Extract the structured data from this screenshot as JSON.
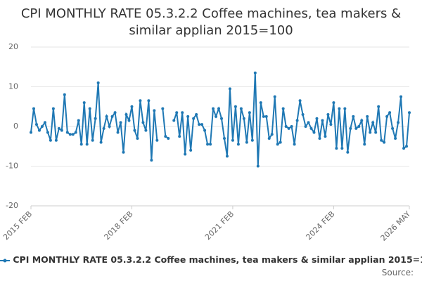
{
  "chart_data": {
    "type": "line",
    "title": "CPI MONTHLY RATE 05.3.2.2 Coffee machines, tea makers & similar applian 2015=100",
    "source": "Source:",
    "x": [
      "2015 FEB",
      "2015 MAR",
      "2015 APR",
      "2015 MAY",
      "2015 JUN",
      "2015 JUL",
      "2015 AUG",
      "2015 SEP",
      "2015 OCT",
      "2015 NOV",
      "2015 DEC",
      "2016 JAN",
      "2016 FEB",
      "2016 MAR",
      "2016 APR",
      "2016 MAY",
      "2016 JUN",
      "2016 JUL",
      "2016 AUG",
      "2016 SEP",
      "2016 OCT",
      "2016 NOV",
      "2016 DEC",
      "2017 JAN",
      "2017 FEB",
      "2017 MAR",
      "2017 APR",
      "2017 MAY",
      "2017 JUN",
      "2017 JUL",
      "2017 AUG",
      "2017 SEP",
      "2017 OCT",
      "2017 NOV",
      "2017 DEC",
      "2018 JAN",
      "2018 FEB",
      "2018 MAR",
      "2018 APR",
      "2018 MAY",
      "2018 JUN",
      "2018 JUL",
      "2018 AUG",
      "2018 SEP",
      "2018 OCT",
      "2018 NOV",
      "2018 DEC",
      "2019 JAN",
      "2019 FEB",
      "2019 MAR",
      "2019 APR",
      "2019 MAY",
      "2019 JUN",
      "2019 JUL",
      "2019 AUG",
      "2019 SEP",
      "2019 OCT",
      "2019 NOV",
      "2019 DEC",
      "2020 JAN",
      "2020 FEB",
      "2020 MAR",
      "2020 APR",
      "2020 MAY",
      "2020 JUN",
      "2020 JUL",
      "2020 AUG",
      "2020 SEP",
      "2020 OCT",
      "2020 NOV",
      "2020 DEC",
      "2021 JAN",
      "2021 FEB",
      "2021 MAR",
      "2021 APR",
      "2021 MAY",
      "2021 JUN",
      "2021 JUL",
      "2021 AUG",
      "2021 SEP",
      "2021 OCT",
      "2021 NOV",
      "2021 DEC",
      "2022 JAN",
      "2022 FEB",
      "2022 MAR",
      "2022 APR",
      "2022 MAY",
      "2022 JUN",
      "2022 JUL",
      "2022 AUG",
      "2022 SEP",
      "2022 OCT",
      "2022 NOV",
      "2022 DEC",
      "2023 JAN",
      "2023 FEB",
      "2023 MAR",
      "2023 APR",
      "2023 MAY",
      "2023 JUN",
      "2023 JUL",
      "2023 AUG",
      "2023 SEP",
      "2023 OCT",
      "2023 NOV",
      "2023 DEC",
      "2024 JAN",
      "2024 FEB",
      "2024 MAR",
      "2024 APR",
      "2024 MAY",
      "2024 JUN",
      "2024 JUL",
      "2024 AUG",
      "2024 SEP",
      "2024 OCT",
      "2024 NOV",
      "2024 DEC",
      "2025 JAN",
      "2025 FEB",
      "2025 MAR",
      "2025 APR",
      "2025 MAY",
      "2025 JUN",
      "2025 JUL",
      "2025 AUG",
      "2025 SEP",
      "2025 OCT",
      "2025 NOV",
      "2025 DEC",
      "2026 JAN",
      "2026 FEB",
      "2026 MAR",
      "2026 APR",
      "2026 MAY"
    ],
    "series": [
      {
        "name": "CPI MONTHLY RATE 05.3.2.2 Coffee machines, tea makers & similar applian 2015=100",
        "color": "#1f78b4",
        "values": [
          -1.5,
          4.5,
          0.5,
          -1,
          0,
          1,
          -1.5,
          -3.5,
          4.5,
          -3.5,
          -0.5,
          -1,
          8,
          -1.5,
          -2,
          -2,
          -1.5,
          1.5,
          -4.5,
          6,
          -4.5,
          4.5,
          -3.5,
          2,
          11,
          -4,
          -0.5,
          2.5,
          0,
          2.5,
          3.5,
          -1.5,
          1,
          -6.5,
          3,
          1.5,
          5,
          -1,
          -3,
          6.5,
          1,
          -1,
          6.5,
          -8.5,
          4,
          -3.5,
          null,
          4.5,
          -2.5,
          -3,
          null,
          1.5,
          3.5,
          -2.5,
          3.5,
          -7,
          2.5,
          -6,
          2,
          3,
          0.5,
          0.5,
          -1,
          -4.5,
          -4.5,
          4.5,
          2.5,
          4.5,
          2,
          -3,
          -7.5,
          9.5,
          -3.5,
          5,
          -4.5,
          4.5,
          2,
          -4,
          3.5,
          -3.5,
          13.5,
          -10,
          6,
          2.5,
          2.5,
          -3,
          -2,
          7.5,
          -4.5,
          -4,
          4.5,
          0,
          -0.5,
          0,
          -4.5,
          1.5,
          6.5,
          3,
          0,
          1,
          -0.5,
          -1.5,
          2,
          -3,
          1.5,
          -2.5,
          3,
          0.5,
          6,
          -5.5,
          4.5,
          -5.5,
          4.5,
          -6.5,
          -0.5,
          2.5,
          -0.5,
          0,
          1.5,
          -4.5,
          2.5,
          -1.5,
          1,
          -1.5,
          5,
          -3.5,
          -4,
          2.5,
          3.5,
          -0.5,
          -3,
          1,
          7.5,
          -5.5,
          -5,
          3.5
        ]
      }
    ],
    "ylim": [
      -20,
      20
    ],
    "yticks": [
      -20,
      -10,
      0,
      10,
      20
    ],
    "xticks": [
      "2015 FEB",
      "2018 FEB",
      "2021 FEB",
      "2024 FEB",
      "2026 MAY"
    ],
    "grid": true
  }
}
